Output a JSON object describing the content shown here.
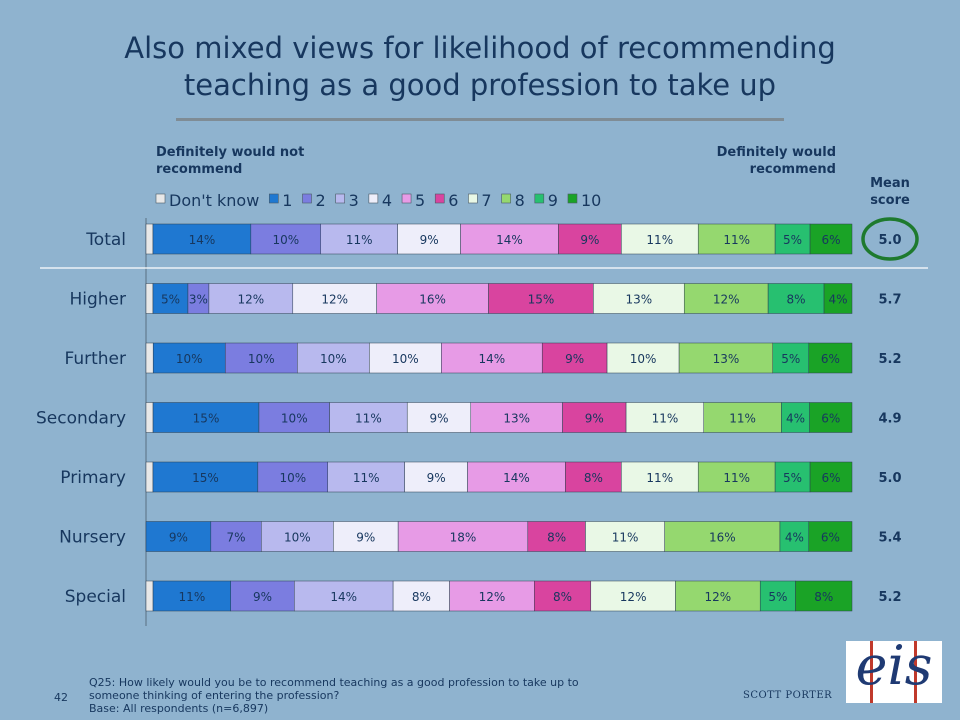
{
  "title_line1": "Also mixed views for likelihood of recommending",
  "title_line2": "teaching as a good profession to take up",
  "anchor_left": "Definitely would not recommend",
  "anchor_right": "Definitely would recommend",
  "mean_header": "Mean score",
  "footnote_line1": "Q25: How likely would you be to recommend teaching as a good profession to take up to",
  "footnote_line2": "someone thinking of entering the profession?",
  "footnote_line3": "Base: All respondents (n=6,897)",
  "page_number": "42",
  "brand": "SCOTT PORTER",
  "logo_text": "eis",
  "chart_data": {
    "type": "bar",
    "orientation": "horizontal",
    "stacked": "100%",
    "categories": [
      "Total",
      "Higher",
      "Further",
      "Secondary",
      "Primary",
      "Nursery",
      "Special"
    ],
    "series": [
      {
        "name": "Don't know",
        "color": "#e8e8e8",
        "values": [
          1,
          1,
          1,
          1,
          1,
          0,
          1
        ]
      },
      {
        "name": "1",
        "color": "#1f78d1",
        "values": [
          14,
          5,
          10,
          15,
          15,
          9,
          11
        ]
      },
      {
        "name": "2",
        "color": "#7b7de0",
        "values": [
          10,
          3,
          10,
          10,
          10,
          7,
          9
        ]
      },
      {
        "name": "3",
        "color": "#b8b9ee",
        "values": [
          11,
          12,
          10,
          11,
          11,
          10,
          14
        ]
      },
      {
        "name": "4",
        "color": "#eeeefa",
        "values": [
          9,
          12,
          10,
          9,
          9,
          9,
          8
        ]
      },
      {
        "name": "5",
        "color": "#e79be6",
        "values": [
          14,
          16,
          14,
          13,
          14,
          18,
          12
        ]
      },
      {
        "name": "6",
        "color": "#d9449f",
        "values": [
          9,
          15,
          9,
          9,
          8,
          8,
          8
        ]
      },
      {
        "name": "7",
        "color": "#e9f8e6",
        "values": [
          11,
          13,
          10,
          11,
          11,
          11,
          12
        ]
      },
      {
        "name": "8",
        "color": "#95d86f",
        "values": [
          11,
          12,
          13,
          11,
          11,
          16,
          12
        ]
      },
      {
        "name": "9",
        "color": "#27c070",
        "values": [
          5,
          8,
          5,
          4,
          5,
          4,
          5
        ]
      },
      {
        "name": "10",
        "color": "#1aa326",
        "values": [
          6,
          4,
          6,
          6,
          6,
          6,
          8
        ]
      }
    ],
    "mean_scores": [
      "5.0",
      "5.7",
      "5.2",
      "4.9",
      "5.0",
      "5.4",
      "5.2"
    ],
    "highlight_mean_category": "Total",
    "highlight_color": "#1e7a2e",
    "legend_position": "top",
    "label_color": "#17375e"
  }
}
